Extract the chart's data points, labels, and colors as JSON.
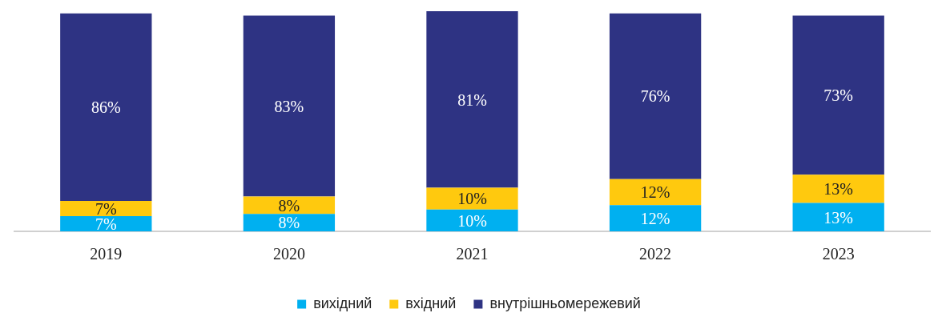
{
  "chart_data": {
    "type": "bar",
    "stacked": true,
    "relative": false,
    "legend": "bottom",
    "categories": [
      "2019",
      "2020",
      "2021",
      "2022",
      "2023"
    ],
    "series": [
      {
        "name": "вихідний",
        "color": "#00b0f0",
        "values": [
          7,
          8,
          10,
          12,
          13
        ],
        "value_labels": [
          "7%",
          "8%",
          "10%",
          "12%",
          "13%"
        ]
      },
      {
        "name": "вхідний",
        "color": "#ffc90e",
        "values": [
          7,
          8,
          10,
          12,
          13
        ],
        "value_labels": [
          "7%",
          "8%",
          "10%",
          "12%",
          "13%"
        ]
      },
      {
        "name": "внутрішньомережевий",
        "color": "#2e3383",
        "values": [
          86,
          83,
          81,
          76,
          73
        ],
        "value_labels": [
          "86%",
          "83%",
          "81%",
          "76%",
          "73%"
        ]
      }
    ]
  }
}
